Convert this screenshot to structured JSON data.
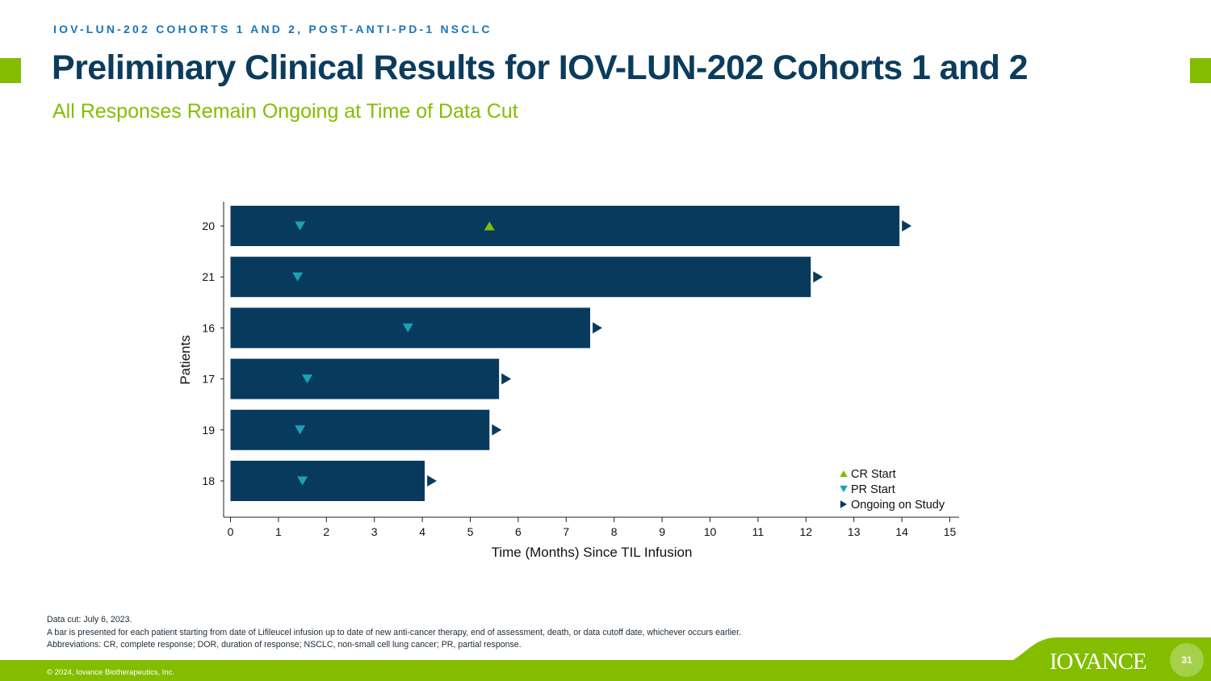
{
  "header": {
    "kicker": "IOV-LUN-202 COHORTS 1 AND 2, POST-ANTI-PD-1 NSCLC",
    "title": "Preliminary Clinical Results for IOV-LUN-202 Cohorts 1 and 2",
    "subtitle": "All Responses Remain Ongoing at Time of Data Cut"
  },
  "colors": {
    "bar": "#083a5e",
    "cr_marker": "#84bd00",
    "pr_marker": "#1aa1b4",
    "ongoing_marker": "#083a5e",
    "accent": "#84bd00",
    "title": "#0b3c5d"
  },
  "chart_data": {
    "type": "swimmer",
    "xlabel": "Time (Months) Since TIL Infusion",
    "ylabel": "Patients",
    "xlim": [
      0,
      15
    ],
    "xticks": [
      0,
      1,
      2,
      3,
      4,
      5,
      6,
      7,
      8,
      9,
      10,
      11,
      12,
      13,
      14,
      15
    ],
    "legend_position": "bottom-right",
    "legend": [
      {
        "label": "CR Start",
        "marker": "triangle-up",
        "color": "#84bd00"
      },
      {
        "label": "PR Start",
        "marker": "triangle-down",
        "color": "#1aa1b4"
      },
      {
        "label": "Ongoing on Study",
        "marker": "triangle-right",
        "color": "#083a5e"
      }
    ],
    "patients": [
      {
        "id": "20",
        "duration": 13.95,
        "pr_start": 1.45,
        "cr_start": 5.4,
        "ongoing": true
      },
      {
        "id": "21",
        "duration": 12.1,
        "pr_start": 1.4,
        "cr_start": null,
        "ongoing": true
      },
      {
        "id": "16",
        "duration": 7.5,
        "pr_start": 3.7,
        "cr_start": null,
        "ongoing": true
      },
      {
        "id": "17",
        "duration": 5.6,
        "pr_start": 1.6,
        "cr_start": null,
        "ongoing": true
      },
      {
        "id": "19",
        "duration": 5.4,
        "pr_start": 1.45,
        "cr_start": null,
        "ongoing": true
      },
      {
        "id": "18",
        "duration": 4.05,
        "pr_start": 1.5,
        "cr_start": null,
        "ongoing": true
      }
    ]
  },
  "footnotes": [
    "Data cut: July 6, 2023.",
    "A bar is presented for each patient starting from date of Lifileucel infusion up to date of new anti-cancer therapy, end of assessment, death, or data cutoff date, whichever occurs earlier.",
    "Abbreviations: CR, complete response; DOR, duration of response; NSCLC, non-small cell lung cancer; PR, partial response."
  ],
  "footer": {
    "copyright": "© 2024, Iovance Biotherapeutics, Inc.",
    "logo": "IOVANCE",
    "page_number": "31"
  }
}
